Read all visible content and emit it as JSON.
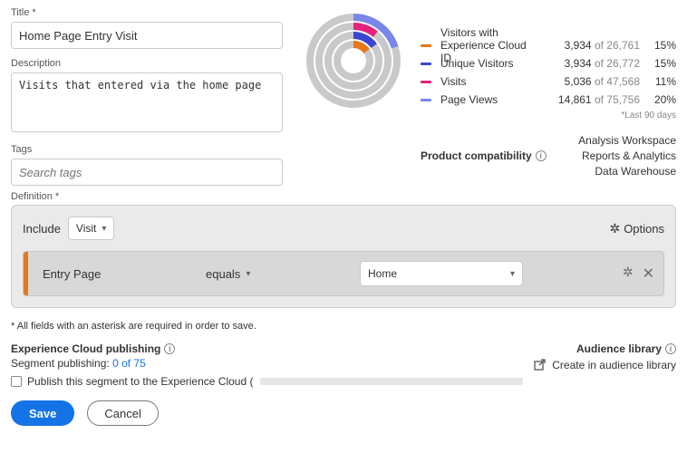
{
  "form": {
    "title_label": "Title",
    "title_value": "Home Page Entry Visit",
    "desc_label": "Description",
    "desc_value": "Visits that entered via the home page",
    "tags_label": "Tags",
    "tags_placeholder": "Search tags"
  },
  "donut": {
    "rings": [
      {
        "radius": 48,
        "width": 8,
        "bg": "#c9c9c9",
        "fg": "#7a86e8",
        "pct": 20,
        "start": -90
      },
      {
        "radius": 38,
        "width": 8,
        "bg": "#c9c9c9",
        "fg": "#e3237d",
        "pct": 11,
        "start": -90
      },
      {
        "radius": 28,
        "width": 8,
        "bg": "#c9c9c9",
        "fg": "#3a46d1",
        "pct": 15,
        "start": -90
      },
      {
        "radius": 18,
        "width": 8,
        "bg": "#c9c9c9",
        "fg": "#e67817",
        "pct": 15,
        "start": -90
      }
    ]
  },
  "metrics": [
    {
      "color": "#e67817",
      "label": "Visitors with Experience Cloud ID",
      "count": "3,934",
      "total": "26,761",
      "pct": "15%"
    },
    {
      "color": "#3a46d1",
      "label": "Unique Visitors",
      "count": "3,934",
      "total": "26,772",
      "pct": "15%"
    },
    {
      "color": "#e3237d",
      "label": "Visits",
      "count": "5,036",
      "total": "47,568",
      "pct": "11%"
    },
    {
      "color": "#7a86e8",
      "label": "Page Views",
      "count": "14,861",
      "total": "75,756",
      "pct": "20%"
    }
  ],
  "metrics_note": "*Last 90 days",
  "compat": {
    "label": "Product compatibility",
    "items": [
      "Analysis Workspace",
      "Reports & Analytics",
      "Data Warehouse"
    ]
  },
  "definition": {
    "label": "Definition",
    "include": "Include",
    "scope": "Visit",
    "options": "Options",
    "rule_field": "Entry Page",
    "rule_op": "equals",
    "rule_value": "Home"
  },
  "footnote": "* All fields with an asterisk are required in order to save.",
  "publishing": {
    "title": "Experience Cloud publishing",
    "sub_prefix": "Segment publishing: ",
    "sub_link": "0 of 75",
    "checkbox_label": "Publish this segment to the Experience Cloud ("
  },
  "audience": {
    "title": "Audience library",
    "create": "Create in audience library"
  },
  "buttons": {
    "save": "Save",
    "cancel": "Cancel"
  }
}
